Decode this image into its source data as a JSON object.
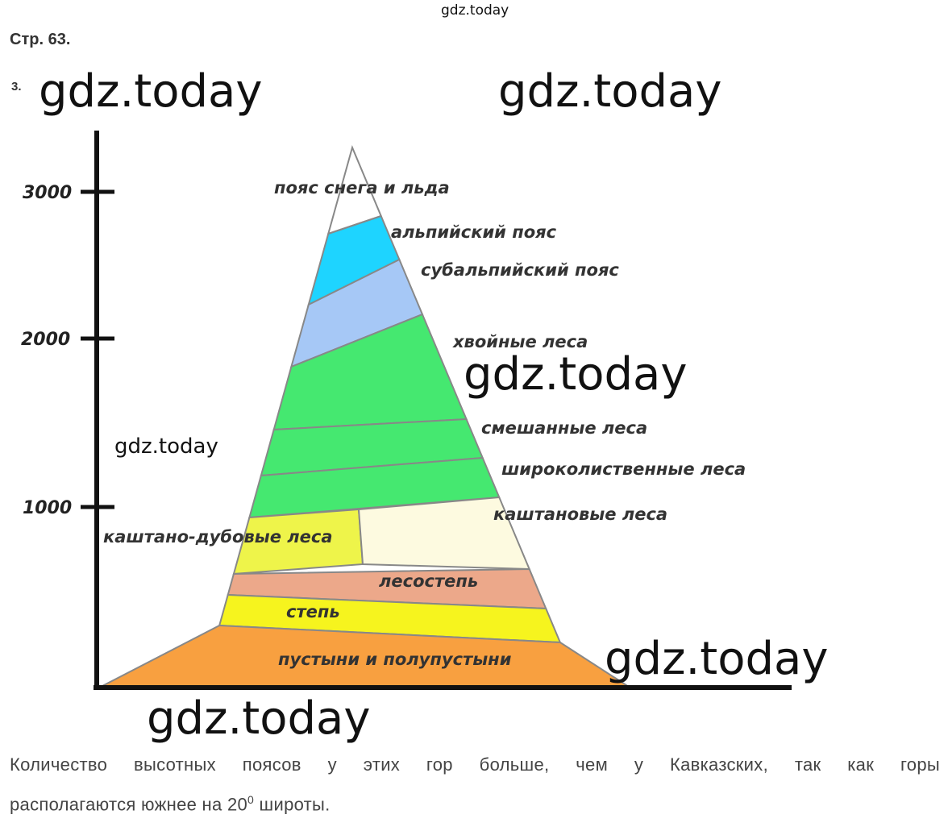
{
  "header": {
    "page": "Стр. 63.",
    "task": "3."
  },
  "watermarks": [
    "gdz.today",
    "gdz.today",
    "gdz.today",
    "gdz.today",
    "gdz.today",
    "gdz.today",
    "gdz.today"
  ],
  "axis": {
    "ticks": [
      "3000",
      "2000",
      "1000"
    ]
  },
  "zones": [
    "пояс снега и льда",
    "альпийский пояс",
    "субальпийский пояс",
    "хвойные леса",
    "смешанные леса",
    "широколиственные леса",
    "каштановые леса",
    "каштано-дубовые леса",
    "лесостепь",
    "степь",
    "пустыни и полупустыни"
  ],
  "answer": {
    "line1": "Количество высотных поясов у этих гор больше, чем у Кавказских, так как горы",
    "line2": "располагаются южнее на 20",
    "sup": "0",
    "line2_end": " широты."
  }
}
